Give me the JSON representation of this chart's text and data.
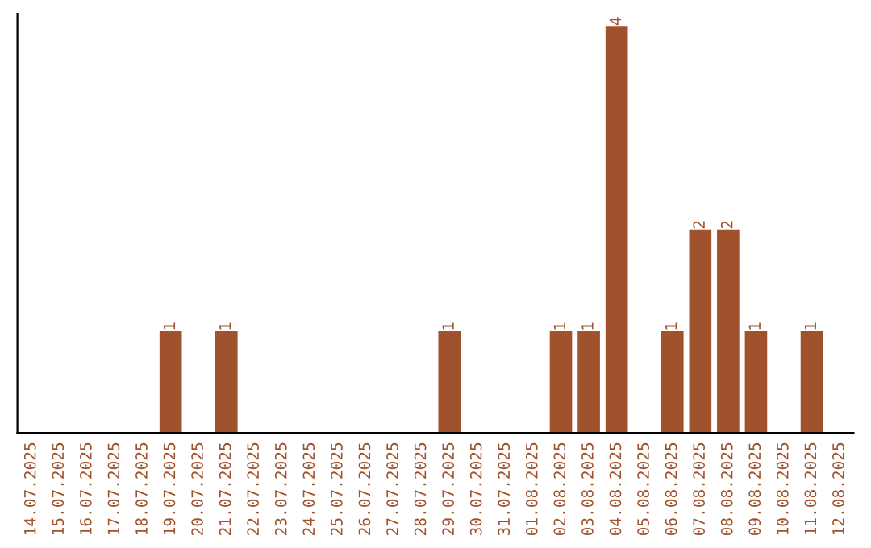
{
  "chart_data": {
    "type": "bar",
    "categories": [
      "14.07.2025",
      "15.07.2025",
      "16.07.2025",
      "17.07.2025",
      "18.07.2025",
      "19.07.2025",
      "20.07.2025",
      "21.07.2025",
      "22.07.2025",
      "23.07.2025",
      "24.07.2025",
      "25.07.2025",
      "26.07.2025",
      "27.07.2025",
      "28.07.2025",
      "29.07.2025",
      "30.07.2025",
      "31.07.2025",
      "01.08.2025",
      "02.08.2025",
      "03.08.2025",
      "04.08.2025",
      "05.08.2025",
      "06.08.2025",
      "07.08.2025",
      "08.08.2025",
      "09.08.2025",
      "10.08.2025",
      "11.08.2025",
      "12.08.2025"
    ],
    "values": [
      0,
      0,
      0,
      0,
      0,
      1,
      0,
      1,
      0,
      0,
      0,
      0,
      0,
      0,
      0,
      1,
      0,
      0,
      0,
      1,
      1,
      4,
      0,
      1,
      2,
      2,
      1,
      0,
      1,
      0
    ],
    "value_labels": [
      null,
      null,
      null,
      null,
      null,
      "1",
      null,
      "1",
      null,
      null,
      null,
      null,
      null,
      null,
      null,
      "1",
      null,
      null,
      null,
      "1",
      "1",
      "4",
      null,
      "1",
      "2",
      "2",
      "1",
      null,
      "1",
      null
    ],
    "color": "#a0522d",
    "tick_labels": "x",
    "grid": false
  }
}
